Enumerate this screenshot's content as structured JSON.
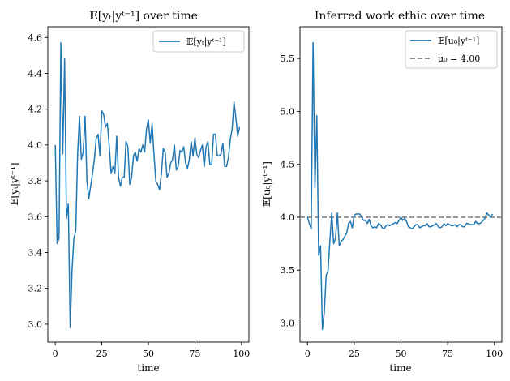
{
  "chart_data": [
    {
      "type": "line",
      "title": "𝔼[yₜ|yᵗ⁻¹] over time",
      "xlabel": "time",
      "ylabel": "𝔼[yₜ|yᵗ⁻¹]",
      "xlim": [
        -4,
        104
      ],
      "ylim": [
        2.9,
        4.66
      ],
      "xticks": [
        0,
        25,
        50,
        75,
        100
      ],
      "yticks": [
        3.0,
        3.2,
        3.4,
        3.6,
        3.8,
        4.0,
        4.2,
        4.4,
        4.6
      ],
      "ytick_labels": [
        "3.0",
        "3.2",
        "3.4",
        "3.6",
        "3.8",
        "4.0",
        "4.2",
        "4.4",
        "4.6"
      ],
      "legend_position": "top-right",
      "series": [
        {
          "name": "𝔼[yₜ|yᵗ⁻¹]",
          "color": "#1f77b4",
          "style": "solid",
          "x": [
            0,
            1,
            2,
            3,
            4,
            5,
            6,
            7,
            8,
            9,
            10,
            11,
            12,
            13,
            14,
            15,
            16,
            17,
            18,
            19,
            20,
            21,
            22,
            23,
            24,
            25,
            26,
            27,
            28,
            29,
            30,
            31,
            32,
            33,
            34,
            35,
            36,
            37,
            38,
            39,
            40,
            41,
            42,
            43,
            44,
            45,
            46,
            47,
            48,
            49,
            50,
            51,
            52,
            53,
            54,
            55,
            56,
            57,
            58,
            59,
            60,
            61,
            62,
            63,
            64,
            65,
            66,
            67,
            68,
            69,
            70,
            71,
            72,
            73,
            74,
            75,
            76,
            77,
            78,
            79,
            80,
            81,
            82,
            83,
            84,
            85,
            86,
            87,
            88,
            89,
            90,
            91,
            92,
            93,
            94,
            95,
            96,
            97,
            98,
            99
          ],
          "values": [
            4.0,
            3.45,
            3.48,
            4.57,
            3.95,
            4.48,
            3.59,
            3.67,
            2.98,
            3.3,
            3.48,
            3.52,
            3.95,
            4.16,
            3.92,
            3.96,
            4.16,
            3.8,
            3.7,
            3.77,
            3.84,
            3.92,
            4.04,
            4.06,
            3.94,
            4.19,
            4.17,
            4.1,
            4.12,
            3.99,
            3.84,
            3.88,
            3.84,
            4.05,
            3.82,
            3.77,
            3.82,
            3.82,
            4.02,
            3.99,
            3.78,
            3.82,
            3.94,
            3.96,
            3.91,
            3.98,
            3.96,
            4.0,
            3.96,
            4.09,
            4.14,
            4.01,
            4.12,
            3.95,
            3.8,
            3.78,
            3.75,
            3.84,
            3.98,
            3.96,
            3.82,
            3.84,
            3.9,
            3.92,
            4.0,
            3.86,
            3.88,
            3.97,
            3.96,
            3.99,
            3.9,
            3.87,
            3.92,
            4.02,
            3.94,
            4.04,
            3.95,
            3.93,
            3.97,
            4.0,
            3.88,
            3.99,
            4.02,
            3.89,
            3.89,
            4.06,
            4.06,
            3.94,
            3.94,
            3.95,
            4.01,
            3.88,
            3.88,
            3.93,
            4.03,
            4.09,
            4.24,
            4.15,
            4.05,
            4.1
          ]
        }
      ]
    },
    {
      "type": "line",
      "title": "Inferred work ethic over time",
      "xlabel": "time",
      "ylabel": "𝔼[u₀|yᵗ⁻¹]",
      "xlim": [
        -4,
        104
      ],
      "ylim": [
        2.82,
        5.8
      ],
      "xticks": [
        0,
        25,
        50,
        75,
        100
      ],
      "yticks": [
        3.0,
        3.5,
        4.0,
        4.5,
        5.0,
        5.5
      ],
      "ytick_labels": [
        "3.0",
        "3.5",
        "4.0",
        "4.5",
        "5.0",
        "5.5"
      ],
      "legend_position": "top-right",
      "series": [
        {
          "name": "𝔼[u₀|yᵗ⁻¹]",
          "color": "#1f77b4",
          "style": "solid",
          "x": [
            0,
            1,
            2,
            3,
            4,
            5,
            6,
            7,
            8,
            9,
            10,
            11,
            12,
            13,
            14,
            15,
            16,
            17,
            18,
            19,
            20,
            21,
            22,
            23,
            24,
            25,
            26,
            27,
            28,
            29,
            30,
            31,
            32,
            33,
            34,
            35,
            36,
            37,
            38,
            39,
            40,
            41,
            42,
            43,
            44,
            45,
            46,
            47,
            48,
            49,
            50,
            51,
            52,
            53,
            54,
            55,
            56,
            57,
            58,
            59,
            60,
            61,
            62,
            63,
            64,
            65,
            66,
            67,
            68,
            69,
            70,
            71,
            72,
            73,
            74,
            75,
            76,
            77,
            78,
            79,
            80,
            81,
            82,
            83,
            84,
            85,
            86,
            87,
            88,
            89,
            90,
            91,
            92,
            93,
            94,
            95,
            96,
            97,
            98,
            99
          ],
          "values": [
            4.0,
            3.94,
            3.89,
            5.65,
            4.28,
            4.96,
            3.64,
            3.73,
            2.94,
            3.1,
            3.45,
            3.49,
            3.78,
            4.04,
            3.75,
            3.8,
            4.04,
            3.73,
            3.77,
            3.79,
            3.82,
            3.85,
            3.94,
            3.96,
            3.9,
            4.02,
            4.03,
            4.03,
            4.03,
            4.0,
            3.97,
            3.97,
            3.94,
            3.98,
            3.92,
            3.9,
            3.91,
            3.9,
            3.94,
            3.93,
            3.9,
            3.89,
            3.92,
            3.93,
            3.92,
            3.93,
            3.94,
            3.95,
            3.94,
            3.97,
            4.0,
            3.97,
            3.99,
            3.96,
            3.91,
            3.9,
            3.89,
            3.91,
            3.93,
            3.93,
            3.9,
            3.91,
            3.92,
            3.92,
            3.94,
            3.91,
            3.91,
            3.92,
            3.93,
            3.94,
            3.91,
            3.9,
            3.91,
            3.94,
            3.92,
            3.94,
            3.93,
            3.92,
            3.92,
            3.93,
            3.91,
            3.93,
            3.93,
            3.91,
            3.91,
            3.94,
            3.94,
            3.93,
            3.93,
            3.93,
            3.96,
            3.94,
            3.94,
            3.95,
            3.97,
            3.99,
            4.04,
            4.02,
            4.0,
            4.03
          ]
        },
        {
          "name": "u₀ = 4.00",
          "color": "#808080",
          "style": "dashed",
          "x": [
            -4,
            104
          ],
          "values": [
            4.0,
            4.0
          ]
        }
      ]
    }
  ]
}
